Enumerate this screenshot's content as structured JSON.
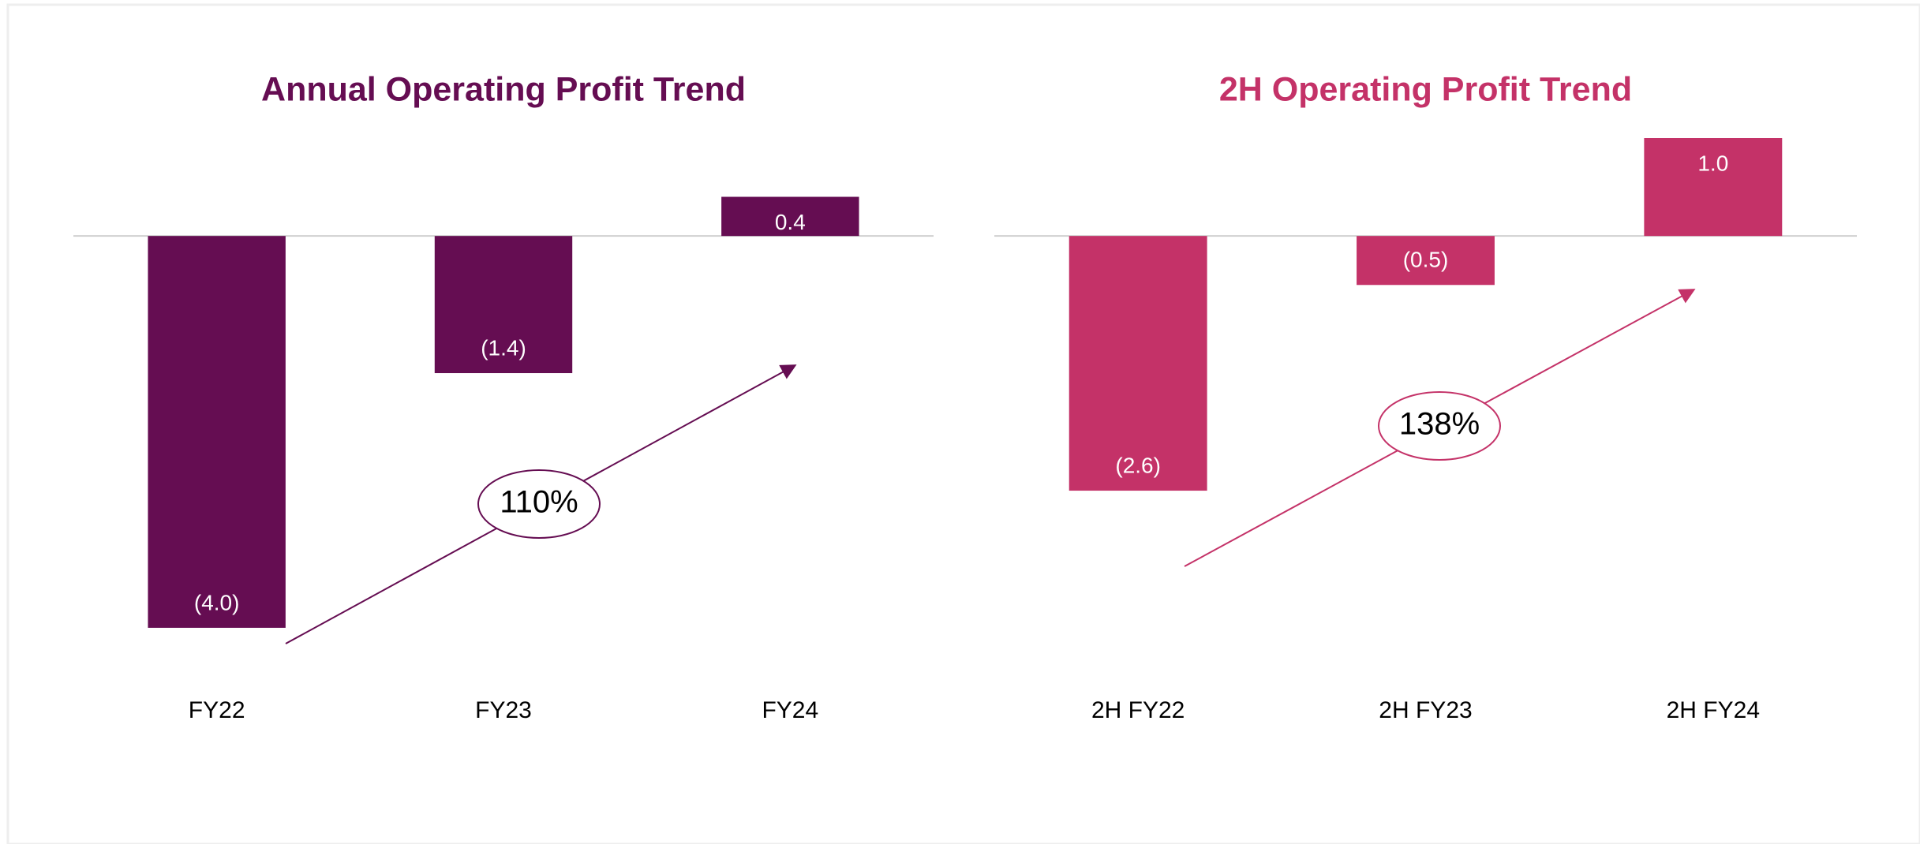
{
  "chart_data": [
    {
      "type": "bar",
      "title": "Annual Operating Profit Trend",
      "categories": [
        "FY22",
        "FY23",
        "FY24"
      ],
      "values": [
        -4.0,
        -1.4,
        0.4
      ],
      "value_labels": [
        "(4.0)",
        "(1.4)",
        "0.4"
      ],
      "color": "#650d52",
      "ylim": [
        -4.5,
        1
      ],
      "annotation": "110%"
    },
    {
      "type": "bar",
      "title": "2H Operating Profit Trend",
      "categories": [
        "2H FY22",
        "2H FY23",
        "2H FY24"
      ],
      "values": [
        -2.6,
        -0.5,
        1.0
      ],
      "value_labels": [
        "(2.6)",
        "(0.5)",
        "1.0"
      ],
      "color": "#c43268",
      "ylim": [
        -4.5,
        1
      ],
      "annotation": "138%"
    }
  ]
}
